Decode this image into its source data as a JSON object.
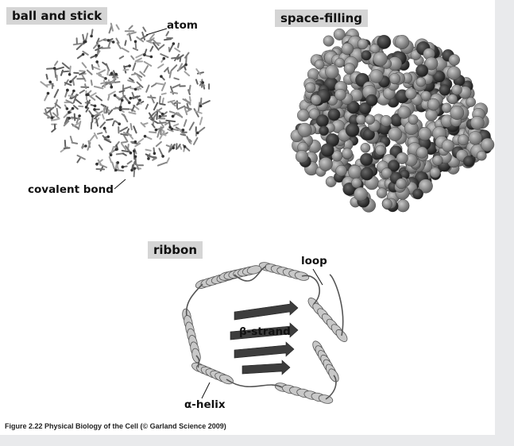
{
  "panels": {
    "ball_and_stick": {
      "title": "ball and stick",
      "callout_atom": "atom",
      "callout_bond": "covalent bond"
    },
    "space_filling": {
      "title": "space-filling"
    },
    "ribbon": {
      "title": "ribbon",
      "callout_loop": "loop",
      "callout_strand": "β-strand",
      "callout_helix": "α-helix"
    }
  },
  "caption": "Figure 2.22  Physical Biology of the Cell (© Garland Science 2009)",
  "colors": {
    "slide_background": "#ffffff",
    "outer_background": "#e9eaec",
    "label_box": "#d5d5d5",
    "stick_gray": "#6f6f6f",
    "sphere_light": "#8a8a8a",
    "sphere_dark": "#2e2e2e",
    "ribbon_light": "#c8c8c8",
    "ribbon_dark": "#3d3d3d"
  }
}
